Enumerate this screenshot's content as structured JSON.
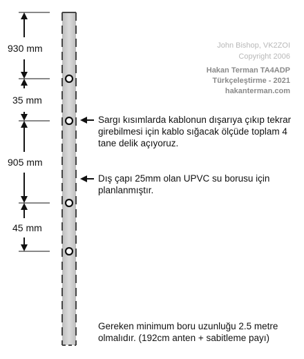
{
  "dimensions": [
    {
      "label": "930 mm"
    },
    {
      "label": "35 mm"
    },
    {
      "label": "905 mm"
    },
    {
      "label": "45 mm"
    }
  ],
  "credits": {
    "original_author": "John Bishop, VK2ZOI",
    "copyright": "Copyright 2006",
    "translator": "Hakan Terman TA4ADP",
    "translation": "Türkçeleştirme - 2021",
    "website": "hakanterman.com"
  },
  "notes": {
    "holes": "Sargı kısımlarda kablonun dışarıya çıkıp tekrar girebilmesi için kablo sığacak ölçüde toplam 4 tane delik açıyoruz.",
    "pipe": "Dış çapı 25mm olan UPVC su borusu için planlanmıştır.",
    "length": "Gereken minimum boru uzunluğu 2.5 metre olmalıdır. (192cm anten + sabitleme payı)"
  },
  "colors": {
    "pipe_fill": "#cfcfcf",
    "pipe_edge": "#555555",
    "ink": "#111111",
    "credit_light": "#b8b8b8",
    "credit_dark": "#8a8a8a"
  }
}
